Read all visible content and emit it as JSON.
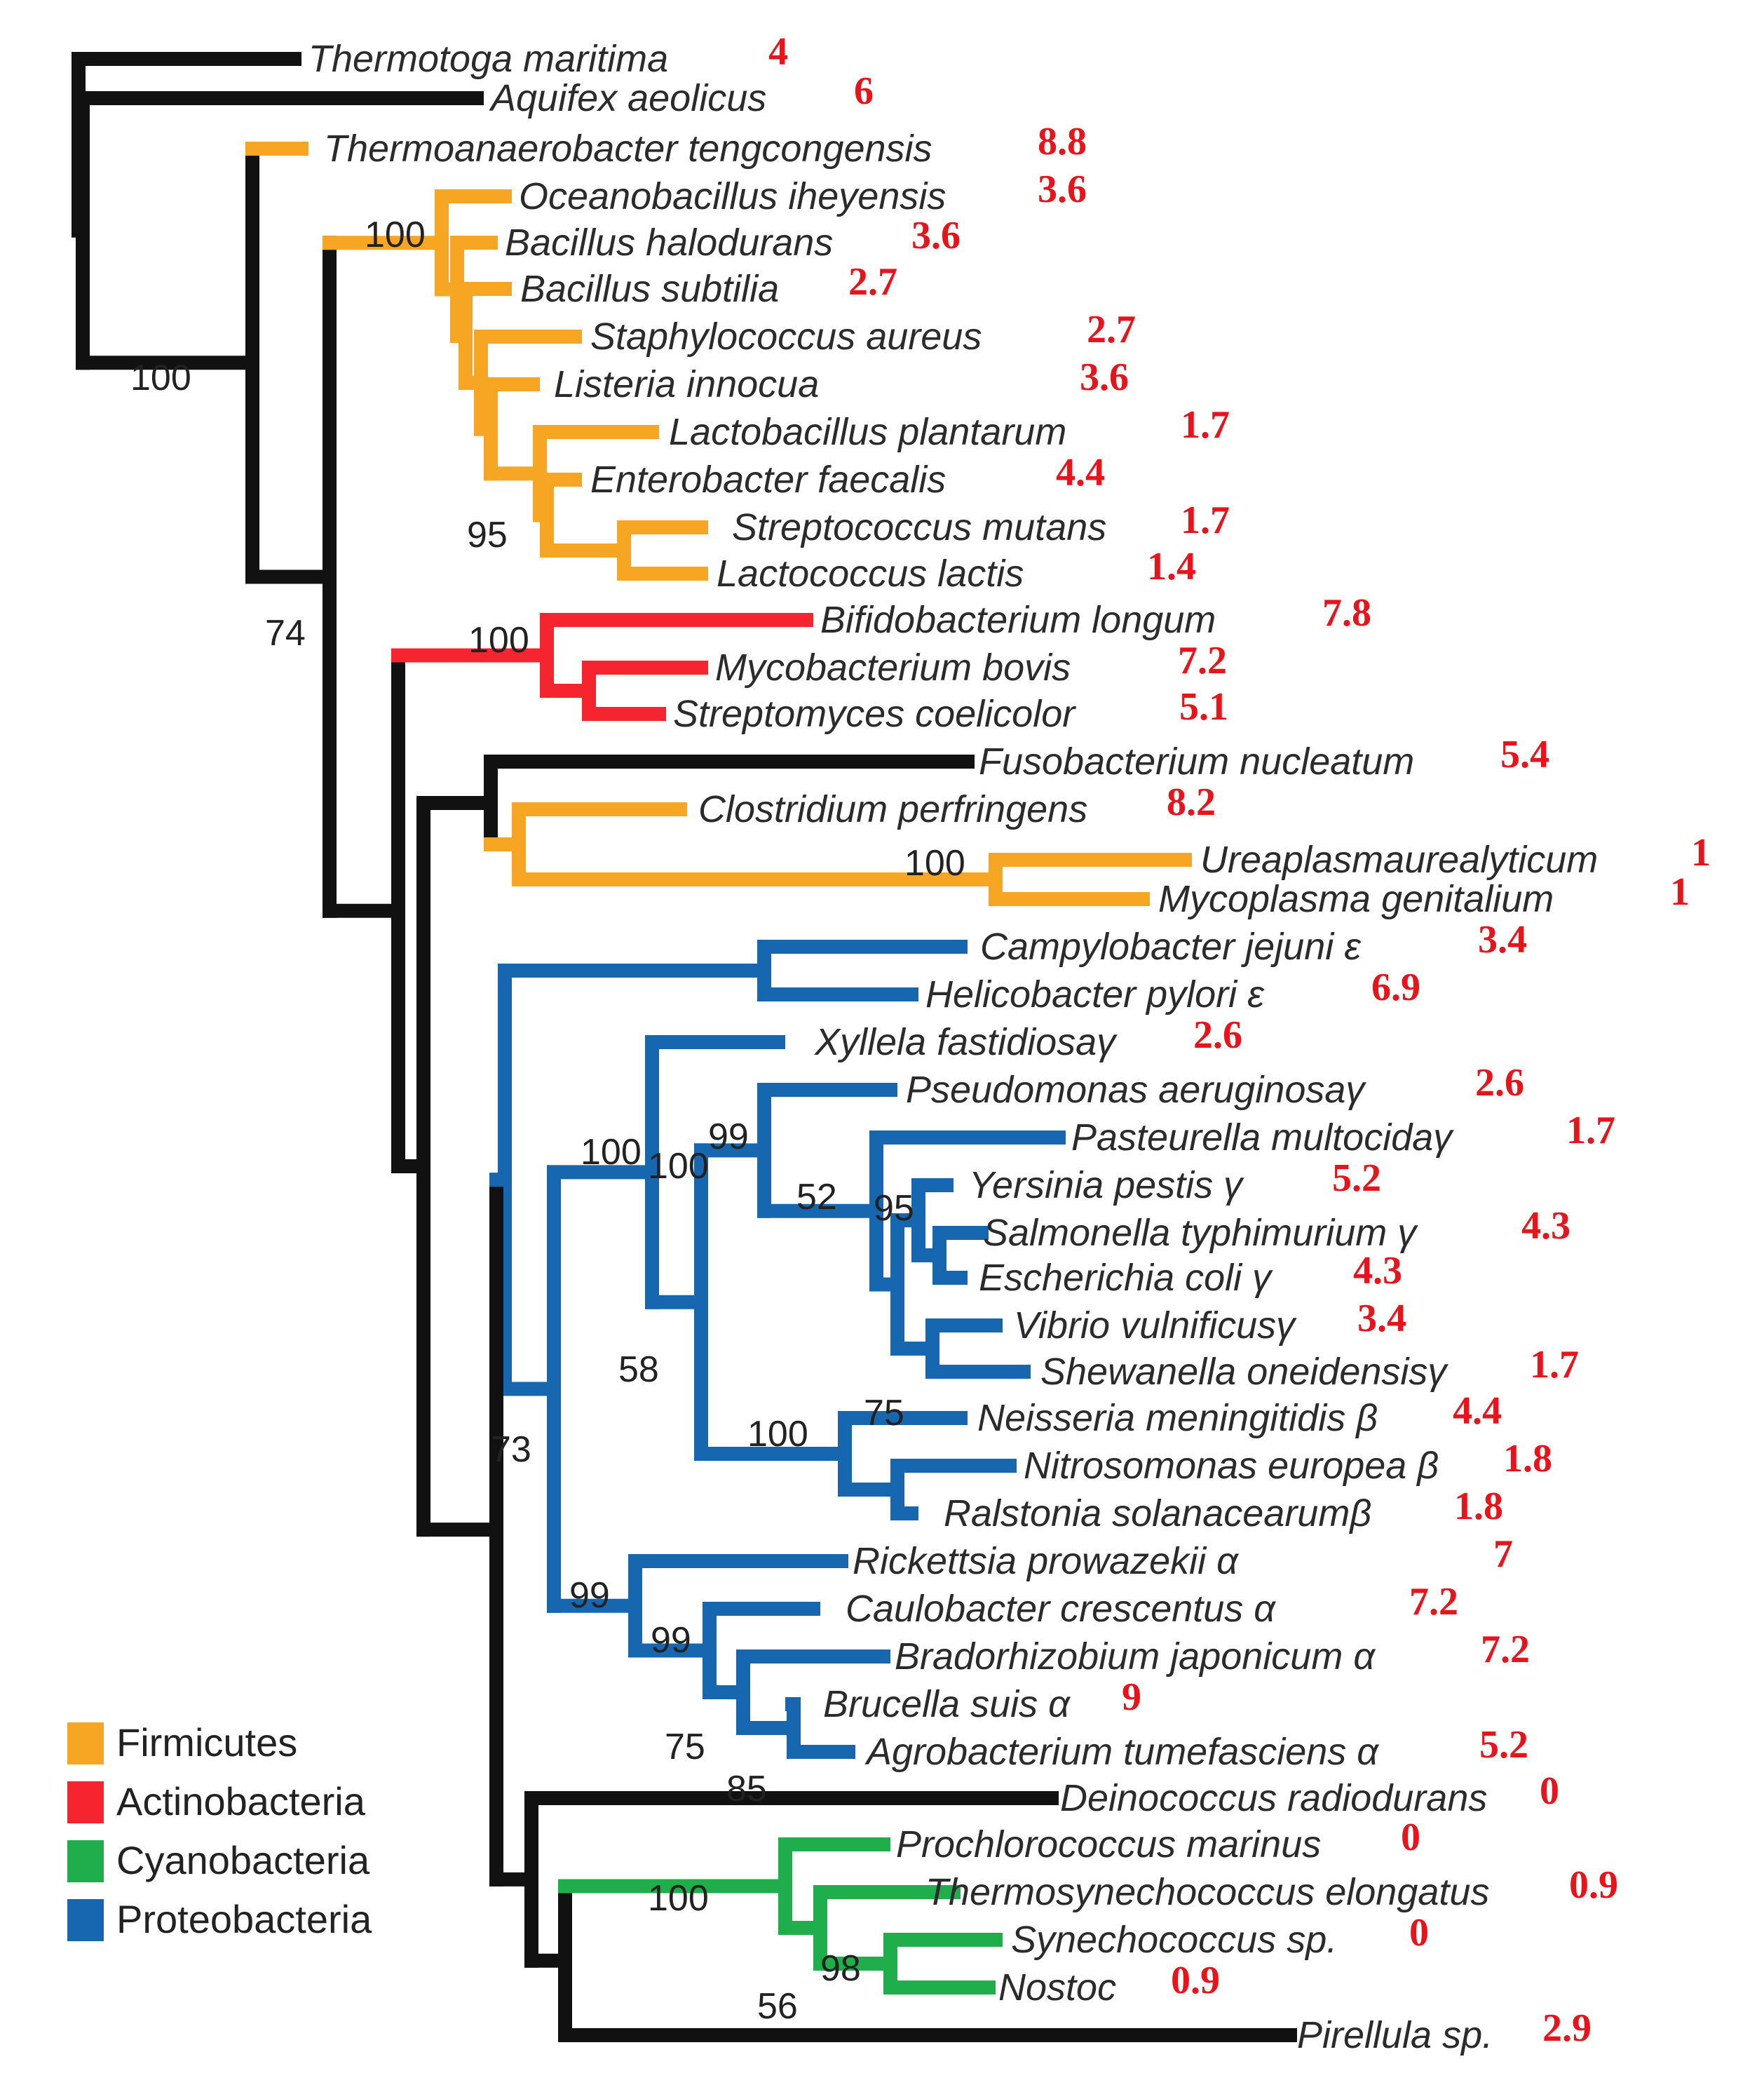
{
  "colors": {
    "other": "#111111",
    "Firmicutes": "#f7a623",
    "Actinobacteria": "#f5242e",
    "Cyanobacteria": "#1fae4b",
    "Proteobacteria": "#1666b0",
    "value_text": "#e8141b"
  },
  "legend": [
    {
      "key": "Firmicutes",
      "label": "Firmicutes"
    },
    {
      "key": "Actinobacteria",
      "label": "Actinobacteria"
    },
    {
      "key": "Cyanobacteria",
      "label": "Cyanobacteria"
    },
    {
      "key": "Proteobacteria",
      "label": "Proteobacteria"
    }
  ],
  "taxa": [
    {
      "name": "Thermotoga maritima",
      "value": "4",
      "group": "other"
    },
    {
      "name": "Aquifex aeolicus",
      "value": "6",
      "group": "other"
    },
    {
      "name": "Thermoanaerobacter tengcongensis",
      "value": "8.8",
      "group": "Firmicutes"
    },
    {
      "name": "Oceanobacillus iheyensis",
      "value": "3.6",
      "group": "Firmicutes"
    },
    {
      "name": "Bacillus halodurans",
      "value": "3.6",
      "group": "Firmicutes"
    },
    {
      "name": "Bacillus subtilia",
      "value": "2.7",
      "group": "Firmicutes"
    },
    {
      "name": "Staphylococcus aureus",
      "value": "2.7",
      "group": "Firmicutes"
    },
    {
      "name": "Listeria innocua",
      "value": "3.6",
      "group": "Firmicutes"
    },
    {
      "name": "Lactobacillus plantarum",
      "value": "1.7",
      "group": "Firmicutes"
    },
    {
      "name": "Enterobacter faecalis",
      "value": "4.4",
      "group": "Firmicutes"
    },
    {
      "name": "Streptococcus mutans",
      "value": "1.7",
      "group": "Firmicutes"
    },
    {
      "name": "Lactococcus lactis",
      "value": "1.4",
      "group": "Firmicutes"
    },
    {
      "name": "Bifidobacterium longum",
      "value": "7.8",
      "group": "Actinobacteria"
    },
    {
      "name": "Mycobacterium bovis",
      "value": "7.2",
      "group": "Actinobacteria"
    },
    {
      "name": "Streptomyces coelicolor",
      "value": "5.1",
      "group": "Actinobacteria"
    },
    {
      "name": "Fusobacterium nucleatum",
      "value": "5.4",
      "group": "other"
    },
    {
      "name": "Clostridium perfringens",
      "value": "8.2",
      "group": "Firmicutes"
    },
    {
      "name": "Ureaplasmaurealyticum",
      "value": "1",
      "group": "Firmicutes"
    },
    {
      "name": "Mycoplasma genitalium",
      "value": "1",
      "group": "Firmicutes"
    },
    {
      "name": "Campylobacter jejuni ε",
      "value": "3.4",
      "group": "Proteobacteria"
    },
    {
      "name": "Helicobacter pylori ε",
      "value": "6.9",
      "group": "Proteobacteria"
    },
    {
      "name": "Xyllela fastidiosaγ",
      "value": "2.6",
      "group": "Proteobacteria"
    },
    {
      "name": "Pseudomonas aeruginosaγ",
      "value": "2.6",
      "group": "Proteobacteria"
    },
    {
      "name": "Pasteurella multocidaγ",
      "value": "1.7",
      "group": "Proteobacteria"
    },
    {
      "name": "Yersinia pestis γ",
      "value": "5.2",
      "group": "Proteobacteria"
    },
    {
      "name": "Salmonella typhimurium γ",
      "value": "4.3",
      "group": "Proteobacteria"
    },
    {
      "name": "Escherichia coli γ",
      "value": "4.3",
      "group": "Proteobacteria"
    },
    {
      "name": "Vibrio vulnificusγ",
      "value": "3.4",
      "group": "Proteobacteria"
    },
    {
      "name": "Shewanella oneidensisγ",
      "value": "1.7",
      "group": "Proteobacteria"
    },
    {
      "name": "Neisseria meningitidis β",
      "value": "4.4",
      "group": "Proteobacteria"
    },
    {
      "name": "Nitrosomonas europea β",
      "value": "1.8",
      "group": "Proteobacteria"
    },
    {
      "name": "Ralstonia solanacearumβ",
      "value": "1.8",
      "group": "Proteobacteria"
    },
    {
      "name": "Rickettsia prowazekii α",
      "value": "7",
      "group": "Proteobacteria"
    },
    {
      "name": "Caulobacter crescentus α",
      "value": "7.2",
      "group": "Proteobacteria"
    },
    {
      "name": "Bradorhizobium japonicum α",
      "value": "7.2",
      "group": "Proteobacteria"
    },
    {
      "name": "Brucella suis α",
      "value": "9",
      "group": "Proteobacteria"
    },
    {
      "name": "Agrobacterium tumefasciens α",
      "value": "5.2",
      "group": "Proteobacteria"
    },
    {
      "name": "Deinococcus radiodurans",
      "value": "0",
      "group": "other"
    },
    {
      "name": "Prochlorococcus marinus",
      "value": "0",
      "group": "Cyanobacteria"
    },
    {
      "name": "Thermosynechococcus elongatus",
      "value": "0.9",
      "group": "Cyanobacteria"
    },
    {
      "name": "Synechococcus sp.",
      "value": "0",
      "group": "Cyanobacteria"
    },
    {
      "name": "Nostoc",
      "value": "0.9",
      "group": "Cyanobacteria"
    },
    {
      "name": "Pirellula sp.",
      "value": "2.9",
      "group": "other"
    }
  ],
  "bootstrap": [
    "100",
    "100",
    "95",
    "74",
    "100",
    "100",
    "100",
    "100",
    "99",
    "52",
    "95",
    "58",
    "75",
    "100",
    "73",
    "99",
    "99",
    "75",
    "85",
    "100",
    "56",
    "98"
  ]
}
